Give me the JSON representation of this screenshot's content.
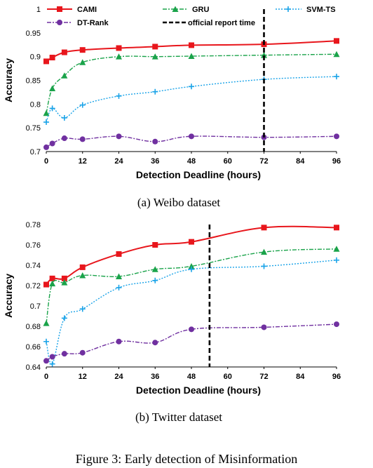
{
  "figure_caption": "Figure 3: Early detection of Misinformation",
  "legend": {
    "cami": "CAMI",
    "gru": "GRU",
    "svm": "SVM-TS",
    "dtrank": "DT-Rank",
    "official": "official report time"
  },
  "colors": {
    "cami": "#e8161c",
    "gru": "#1aa34a",
    "svm": "#1aa3e8",
    "dtrank": "#7030a0",
    "official": "#000000"
  },
  "chart_data": [
    {
      "type": "line",
      "caption": "(a)  Weibo dataset",
      "xlabel": "Detection Deadline (hours)",
      "ylabel": "Accuracy",
      "xlim": [
        0,
        96
      ],
      "ylim": [
        0.7,
        1.0
      ],
      "xticks": [
        0,
        12,
        24,
        36,
        48,
        60,
        72,
        84,
        96
      ],
      "yticks": [
        0.7,
        0.75,
        0.8,
        0.85,
        0.9,
        0.95,
        1.0
      ],
      "ytick_labels": [
        "0.7",
        "0.75",
        "0.8",
        "0.85",
        "0.9",
        "0.95",
        "1"
      ],
      "official_report_time": 72,
      "series": [
        {
          "name": "CAMI",
          "key": "cami",
          "x": [
            0,
            2,
            6,
            12,
            24,
            36,
            48,
            72,
            96
          ],
          "y": [
            0.89,
            0.898,
            0.909,
            0.914,
            0.918,
            0.921,
            0.924,
            0.926,
            0.933
          ]
        },
        {
          "name": "GRU",
          "key": "gru",
          "x": [
            0,
            2,
            6,
            12,
            24,
            36,
            48,
            72,
            96
          ],
          "y": [
            0.781,
            0.833,
            0.86,
            0.888,
            0.9,
            0.9,
            0.901,
            0.903,
            0.905
          ]
        },
        {
          "name": "SVM-TS",
          "key": "svm",
          "x": [
            0,
            2,
            6,
            12,
            24,
            36,
            48,
            72,
            96
          ],
          "y": [
            0.762,
            0.791,
            0.771,
            0.798,
            0.817,
            0.826,
            0.837,
            0.852,
            0.858
          ]
        },
        {
          "name": "DT-Rank",
          "key": "dtrank",
          "x": [
            0,
            2,
            6,
            12,
            24,
            36,
            48,
            72,
            96
          ],
          "y": [
            0.709,
            0.717,
            0.728,
            0.726,
            0.732,
            0.721,
            0.732,
            0.73,
            0.732
          ]
        }
      ]
    },
    {
      "type": "line",
      "caption": "(b)  Twitter dataset",
      "xlabel": "Detection Deadline (hours)",
      "ylabel": "Accuracy",
      "xlim": [
        0,
        96
      ],
      "ylim": [
        0.64,
        0.78
      ],
      "xticks": [
        0,
        12,
        24,
        36,
        48,
        60,
        72,
        84,
        96
      ],
      "yticks": [
        0.64,
        0.66,
        0.68,
        0.7,
        0.72,
        0.74,
        0.76,
        0.78
      ],
      "ytick_labels": [
        "0.64",
        "0.66",
        "0.68",
        "0.7",
        "0.72",
        "0.74",
        "0.76",
        "0.78"
      ],
      "official_report_time": 54,
      "series": [
        {
          "name": "CAMI",
          "key": "cami",
          "x": [
            0,
            2,
            6,
            12,
            24,
            36,
            48,
            72,
            96
          ],
          "y": [
            0.721,
            0.727,
            0.727,
            0.738,
            0.751,
            0.76,
            0.763,
            0.777,
            0.777
          ]
        },
        {
          "name": "GRU",
          "key": "gru",
          "x": [
            0,
            2,
            6,
            12,
            24,
            36,
            48,
            72,
            96
          ],
          "y": [
            0.683,
            0.722,
            0.723,
            0.73,
            0.729,
            0.736,
            0.739,
            0.753,
            0.756
          ]
        },
        {
          "name": "SVM-TS",
          "key": "svm",
          "x": [
            0,
            2,
            6,
            12,
            24,
            36,
            48,
            72,
            96
          ],
          "y": [
            0.665,
            0.643,
            0.688,
            0.697,
            0.718,
            0.725,
            0.736,
            0.739,
            0.745
          ]
        },
        {
          "name": "DT-Rank",
          "key": "dtrank",
          "x": [
            0,
            2,
            6,
            12,
            24,
            36,
            48,
            72,
            96
          ],
          "y": [
            0.646,
            0.65,
            0.653,
            0.654,
            0.665,
            0.664,
            0.677,
            0.679,
            0.682
          ]
        }
      ]
    }
  ]
}
